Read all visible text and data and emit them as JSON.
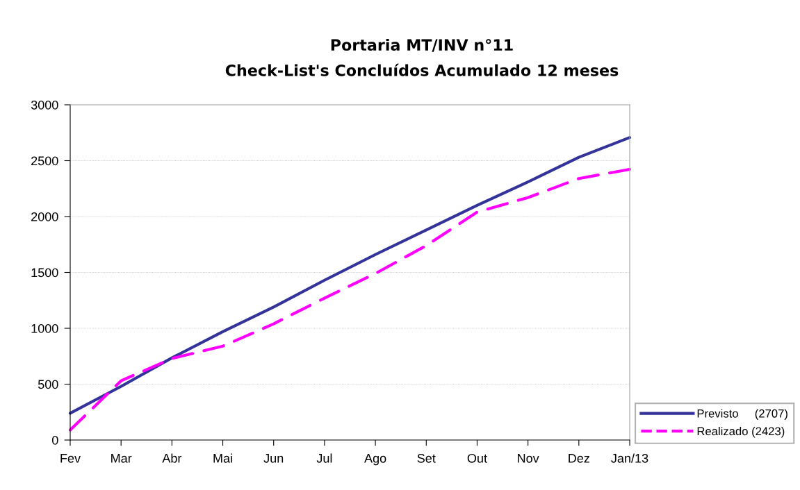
{
  "chart_data": {
    "type": "line",
    "title": "Portaria MT/INV n°11\nCheck-List's Concluídos Acumulado 12 meses",
    "categories": [
      "Fev",
      "Mar",
      "Abr",
      "Mai",
      "Jun",
      "Jul",
      "Ago",
      "Set",
      "Out",
      "Nov",
      "Dez",
      "Jan/13"
    ],
    "series": [
      {
        "name": "Previsto     (2707)",
        "color": "#333399",
        "line_style": "solid",
        "values": [
          240,
          480,
          735,
          970,
          1190,
          1430,
          1660,
          1880,
          2100,
          2310,
          2530,
          2707
        ]
      },
      {
        "name": "Realizado (2423)",
        "color": "#ff00ff",
        "line_style": "dashed",
        "values": [
          90,
          530,
          730,
          840,
          1040,
          1270,
          1490,
          1740,
          2040,
          2170,
          2340,
          2423
        ]
      }
    ],
    "ylim": [
      0,
      3000
    ],
    "yticks": [
      0,
      500,
      1000,
      1500,
      2000,
      2500,
      3000
    ],
    "grid": "y",
    "legend": "bottom right"
  }
}
